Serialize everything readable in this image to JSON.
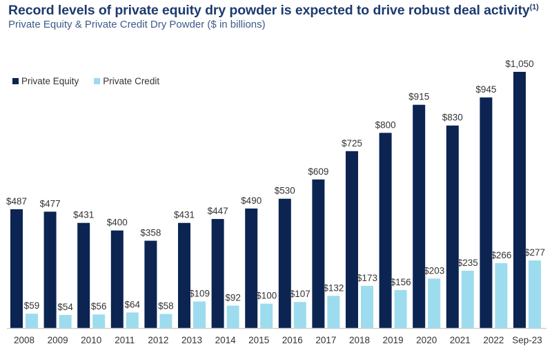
{
  "chart_data": {
    "type": "bar",
    "title": "Record levels of private equity dry powder is expected to drive robust deal activity",
    "title_superscript": "(1)",
    "subtitle": "Private Equity & Private Credit Dry Powder ($ in billions)",
    "categories": [
      "2008",
      "2009",
      "2010",
      "2011",
      "2012",
      "2013",
      "2014",
      "2015",
      "2016",
      "2017",
      "2018",
      "2019",
      "2020",
      "2021",
      "2022",
      "Sep-23"
    ],
    "series": [
      {
        "name": "Private Equity",
        "color": "#0b2452",
        "values": [
          487,
          477,
          431,
          400,
          358,
          431,
          447,
          490,
          530,
          609,
          725,
          800,
          915,
          830,
          945,
          1050
        ]
      },
      {
        "name": "Private Credit",
        "color": "#9ddcee",
        "values": [
          59,
          54,
          56,
          64,
          58,
          109,
          92,
          100,
          107,
          132,
          173,
          156,
          203,
          235,
          266,
          277
        ]
      }
    ],
    "data_label_format": "$",
    "ylim": [
      0,
      1050
    ],
    "grid": false,
    "legend": "top-left"
  }
}
